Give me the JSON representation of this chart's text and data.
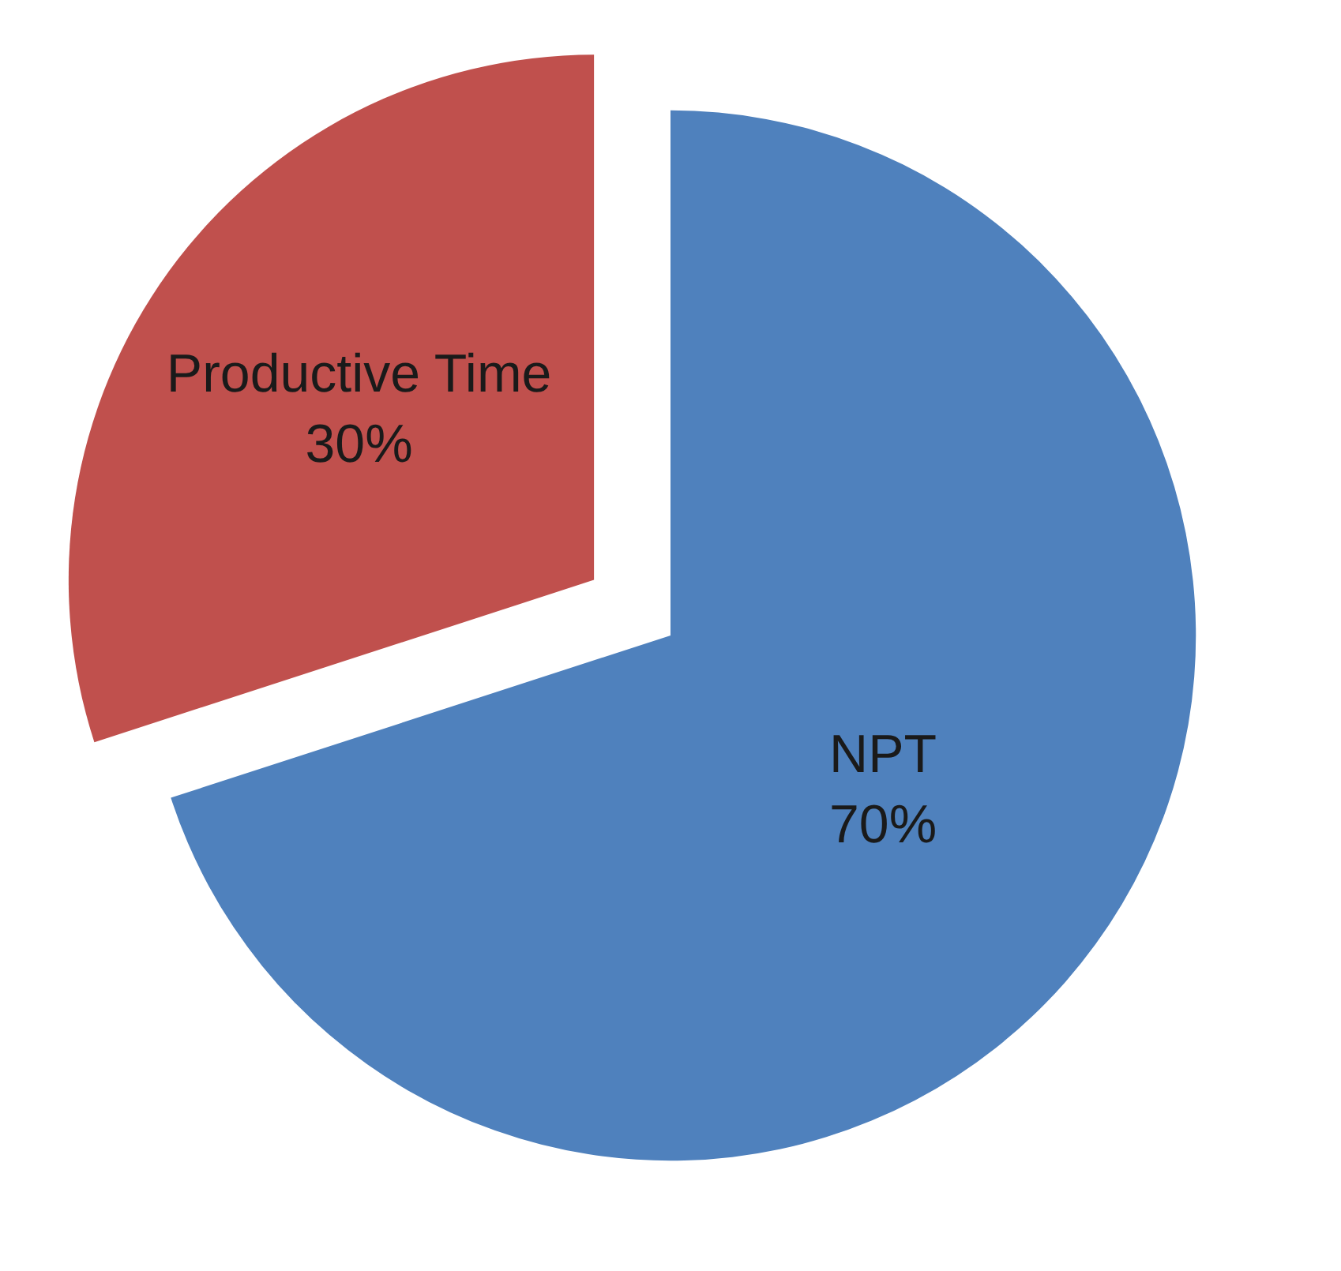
{
  "chart_data": {
    "type": "pie",
    "categories": [
      "NPT",
      "Productive Time"
    ],
    "values": [
      70,
      30
    ],
    "value_labels": [
      "70%",
      "30%"
    ],
    "colors": [
      "#4f81bd",
      "#c0504d"
    ],
    "legend": false
  }
}
